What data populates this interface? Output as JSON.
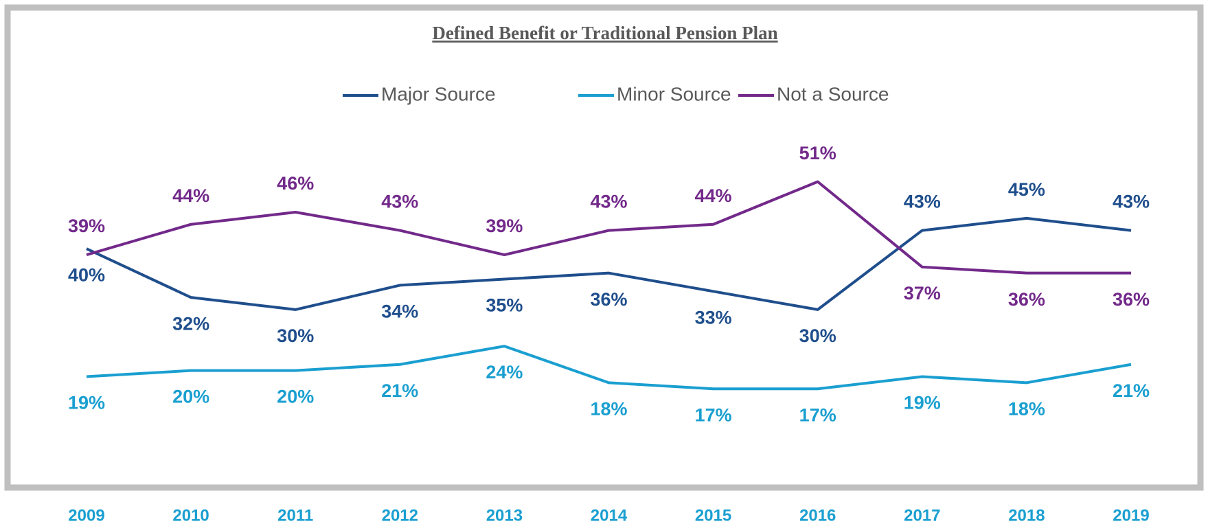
{
  "chart_data": {
    "type": "line",
    "title": "Defined Benefit or Traditional Pension Plan",
    "categories": [
      "2009",
      "2010",
      "2011",
      "2012",
      "2013",
      "2014",
      "2015",
      "2016",
      "2017",
      "2018",
      "2019"
    ],
    "legend": "top",
    "series": [
      {
        "name": "Major Source",
        "color": "#1f4e8c",
        "values": [
          40,
          32,
          30,
          34,
          35,
          36,
          33,
          30,
          43,
          45,
          43
        ],
        "value_labels": [
          "40%",
          "32%",
          "30%",
          "34%",
          "35%",
          "36%",
          "33%",
          "30%",
          "43%",
          "45%",
          "43%"
        ]
      },
      {
        "name": "Minor Source",
        "color": "#1a9fd0",
        "values": [
          19,
          20,
          20,
          21,
          24,
          18,
          17,
          17,
          19,
          18,
          21
        ],
        "value_labels": [
          "19%",
          "20%",
          "20%",
          "21%",
          "24%",
          "18%",
          "17%",
          "17%",
          "19%",
          "18%",
          "21%"
        ]
      },
      {
        "name": "Not a Source",
        "color": "#72298a",
        "values": [
          39,
          44,
          46,
          43,
          39,
          43,
          44,
          51,
          37,
          36,
          36
        ],
        "value_labels": [
          "39%",
          "44%",
          "46%",
          "43%",
          "39%",
          "43%",
          "44%",
          "51%",
          "37%",
          "36%",
          "36%"
        ]
      }
    ]
  }
}
